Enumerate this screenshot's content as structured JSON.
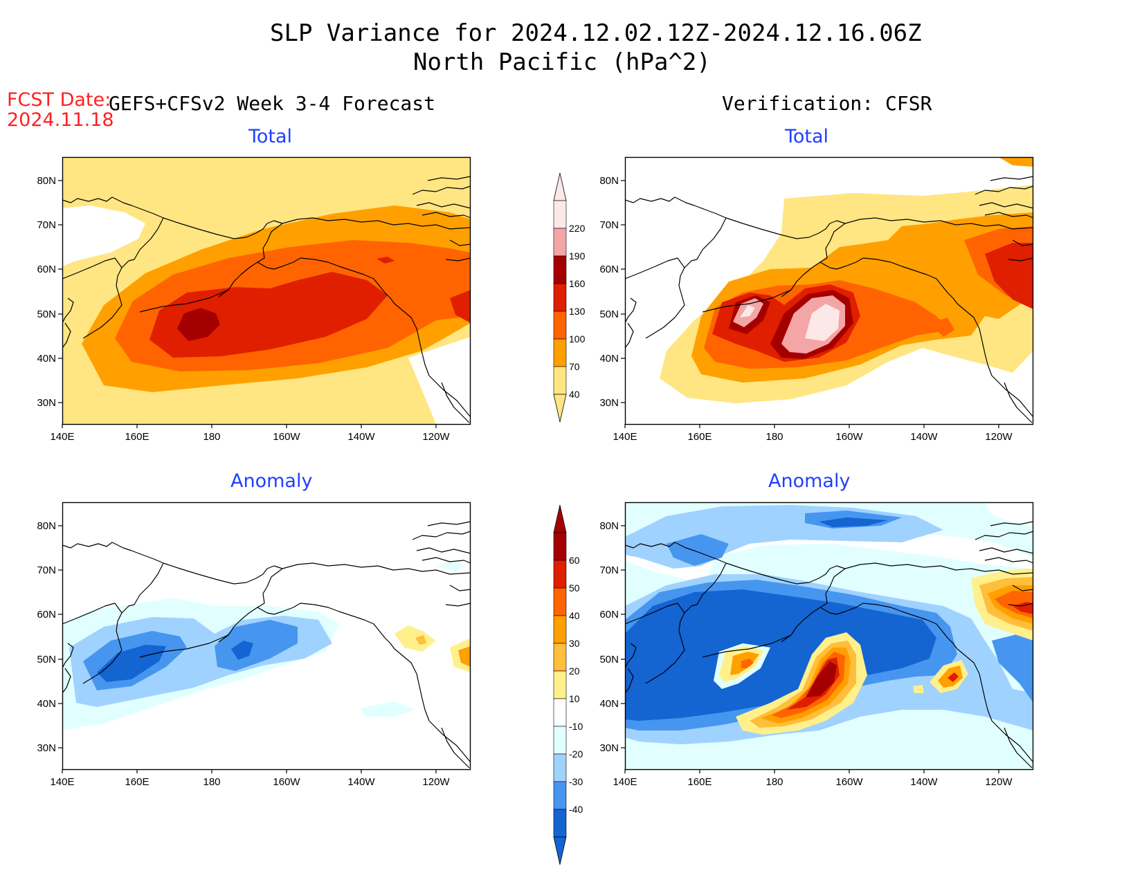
{
  "header": {
    "title_line1": "SLP Variance for 2024.12.02.12Z-2024.12.16.06Z",
    "title_line2": "North Pacific (hPa^2)"
  },
  "fcst": {
    "label": "FCST Date:",
    "date": "2024.11.18"
  },
  "columns": {
    "left": "GEFS+CFSv2 Week 3-4 Forecast",
    "right": "Verification: CFSR"
  },
  "panel_titles": {
    "total": "Total",
    "anomaly": "Anomaly"
  },
  "axes": {
    "lat_ticks": [
      "80N",
      "70N",
      "60N",
      "50N",
      "40N",
      "30N"
    ],
    "lon_ticks": [
      "140E",
      "160E",
      "180",
      "160W",
      "140W",
      "120W"
    ]
  },
  "legend_total": {
    "labels": [
      "220",
      "190",
      "160",
      "130",
      "100",
      "70",
      "40"
    ],
    "colors": [
      "#fde8e8",
      "#f4a5a5",
      "#a50000",
      "#e01e00",
      "#ff6400",
      "#ffa000",
      "#ffe682"
    ]
  },
  "legend_anomaly": {
    "labels": [
      "60",
      "50",
      "40",
      "30",
      "20",
      "10",
      "-10",
      "-20",
      "-30",
      "-40"
    ],
    "colors": [
      "#a50000",
      "#e01e00",
      "#ff6400",
      "#ffa000",
      "#ffbe3c",
      "#fff08c",
      "#ffffff",
      "#e1ffff",
      "#a0d2ff",
      "#4696f0",
      "#1464d2"
    ]
  },
  "colors": {
    "y40": "#ffe682",
    "o70": "#ffa000",
    "r100": "#ff6400",
    "r130": "#e01e00",
    "dr160": "#a50000",
    "p190": "#f4a5a5",
    "w220": "#fde8e8",
    "a10": "#fff08c",
    "a20": "#ffbe3c",
    "a30": "#ffa000",
    "a40": "#ff6400",
    "a50": "#e01e00",
    "a60": "#a50000",
    "c10": "#e1ffff",
    "c20": "#a0d2ff",
    "c30": "#4696f0",
    "c40": "#1464d2"
  }
}
